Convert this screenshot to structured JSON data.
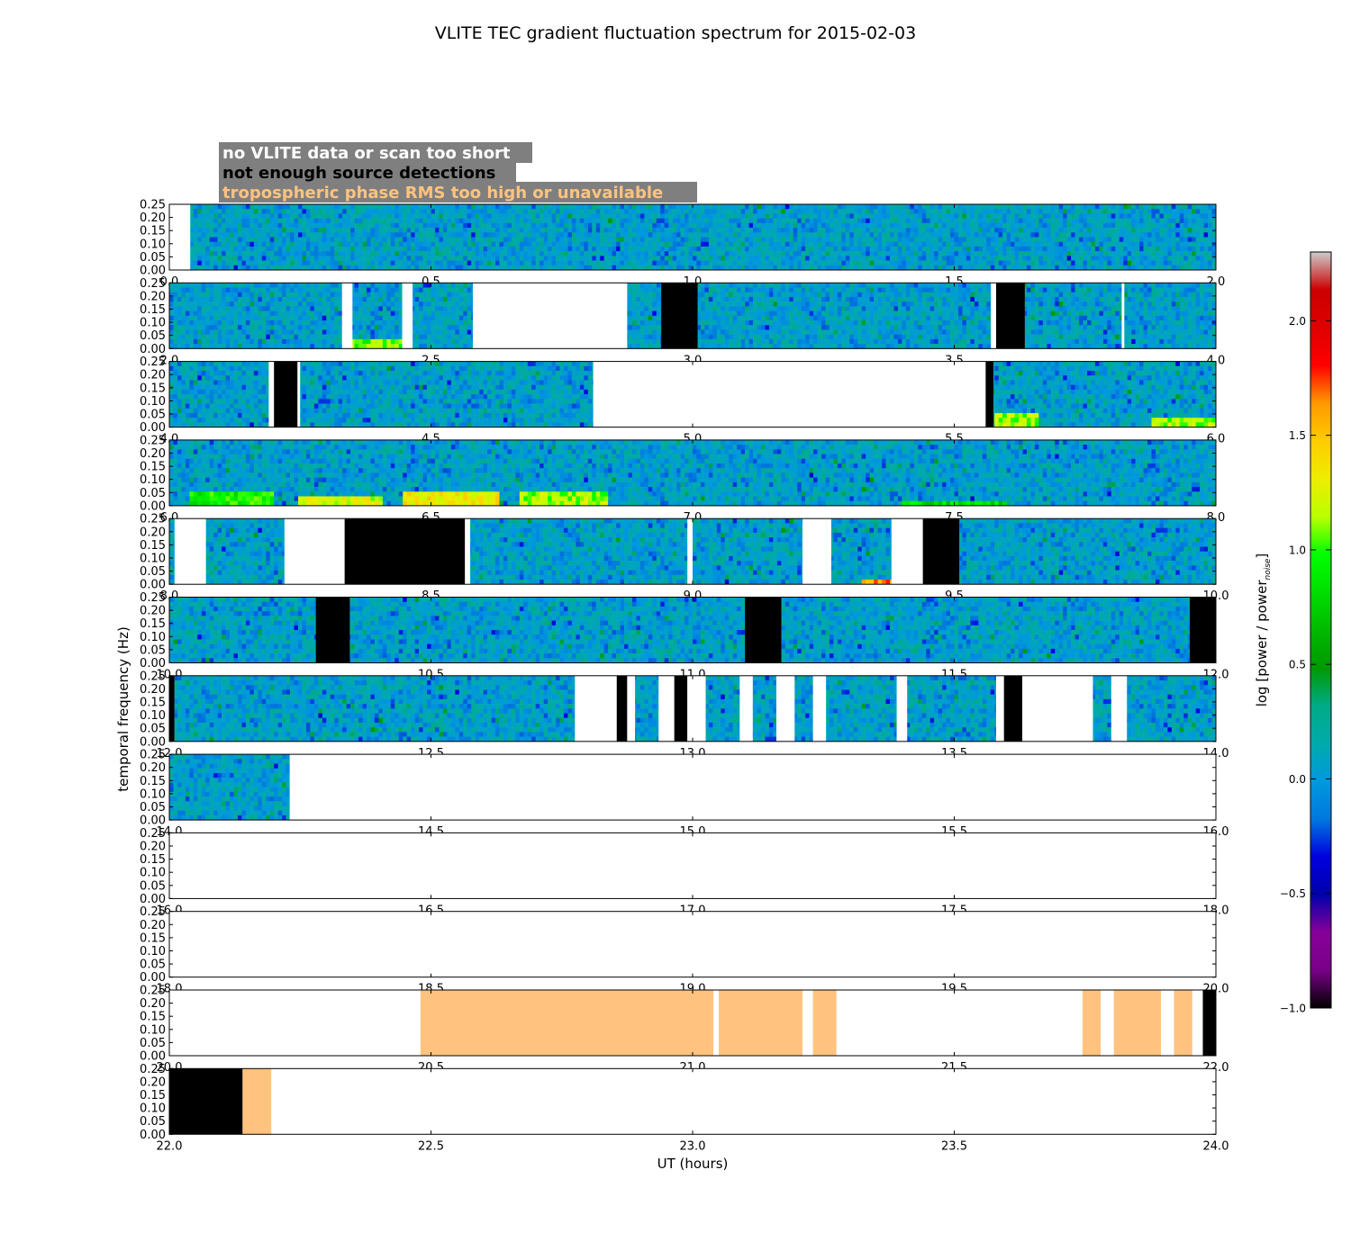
{
  "chart_data": {
    "type": "heatmap",
    "title": "VLITE TEC gradient fluctuation spectrum for 2015-02-03",
    "xlabel": "UT (hours)",
    "ylabel": "temporal frequency (Hz)",
    "ylim": [
      0,
      0.25
    ],
    "yticks": [
      "0.00",
      "0.05",
      "0.10",
      "0.15",
      "0.20",
      "0.25"
    ],
    "panel_hours": 2,
    "legend": {
      "placement": "top-left",
      "entries": [
        {
          "label": "no VLITE data or scan too short",
          "text_color": "#ffffff",
          "box_color": "#7f7f7f",
          "fill": "#ffffff"
        },
        {
          "label": "not enough source detections",
          "text_color": "#000000",
          "box_color": "#7f7f7f",
          "fill": "#000000"
        },
        {
          "label": "tropospheric phase RMS too high or unavailable",
          "text_color": "#ffc37f",
          "box_color": "#7f7f7f",
          "fill": "#ffc37f"
        }
      ]
    },
    "colorbar": {
      "label": "log [power / power",
      "label_sub": "noise",
      "label_end": "]",
      "range": [
        -1.0,
        2.3
      ],
      "ticks": [
        "−1.0",
        "−0.5",
        "0.0",
        "0.5",
        "1.0",
        "1.5",
        "2.0"
      ],
      "tick_values": [
        -1.0,
        -0.5,
        0.0,
        0.5,
        1.0,
        1.5,
        2.0
      ],
      "colormap": "nipy_spectral"
    },
    "panels": [
      {
        "start": 0,
        "xticks": [
          "0.0",
          "0.5",
          "1.0",
          "1.5",
          "2.0"
        ],
        "segments": [
          [
            0.0,
            0.04,
            "nodata"
          ],
          [
            0.04,
            2.0,
            "data"
          ]
        ]
      },
      {
        "start": 2,
        "xticks": [
          "2.0",
          "2.5",
          "3.0",
          "3.5",
          "4.0"
        ],
        "segments": [
          [
            2.0,
            2.33,
            "data"
          ],
          [
            2.33,
            2.35,
            "nodata"
          ],
          [
            2.35,
            2.445,
            "data",
            [
              [
                2.35,
                2.445,
                0,
                0.03,
                1.2
              ]
            ]
          ],
          [
            2.445,
            2.465,
            "nodata"
          ],
          [
            2.465,
            2.58,
            "data"
          ],
          [
            2.58,
            2.875,
            "nodata"
          ],
          [
            2.875,
            2.94,
            "data"
          ],
          [
            2.94,
            3.01,
            "nodet"
          ],
          [
            3.01,
            3.57,
            "data"
          ],
          [
            3.57,
            3.58,
            "nodata"
          ],
          [
            3.58,
            3.635,
            "nodet"
          ],
          [
            3.635,
            3.82,
            "data"
          ],
          [
            3.82,
            3.825,
            "nodata"
          ],
          [
            3.825,
            4.0,
            "data"
          ]
        ]
      },
      {
        "start": 4,
        "xticks": [
          "4.0",
          "4.5",
          "5.0",
          "5.5",
          "6.0"
        ],
        "segments": [
          [
            4.0,
            4.19,
            "data"
          ],
          [
            4.19,
            4.2,
            "nodata"
          ],
          [
            4.2,
            4.245,
            "nodet"
          ],
          [
            4.245,
            4.25,
            "nodata"
          ],
          [
            4.25,
            4.81,
            "data"
          ],
          [
            4.81,
            5.56,
            "nodata"
          ],
          [
            5.56,
            5.575,
            "nodet"
          ],
          [
            5.575,
            6.0,
            "data",
            [
              [
                5.58,
                5.66,
                0,
                0.05,
                1.3
              ],
              [
                5.88,
                6.0,
                0,
                0.03,
                1.3
              ]
            ]
          ]
        ]
      },
      {
        "start": 6,
        "xticks": [
          "6.0",
          "6.5",
          "7.0",
          "7.5",
          "8.0"
        ],
        "segments": [
          [
            6.0,
            8.0,
            "data",
            [
              [
                6.04,
                6.2,
                0,
                0.05,
                1.1
              ],
              [
                6.25,
                6.41,
                0,
                0.04,
                1.4
              ],
              [
                6.45,
                6.63,
                0,
                0.05,
                1.5
              ],
              [
                6.67,
                6.84,
                0,
                0.06,
                1.3
              ],
              [
                7.4,
                7.6,
                0,
                0.02,
                1.0
              ]
            ]
          ]
        ]
      },
      {
        "start": 8,
        "xticks": [
          "8.0",
          "8.5",
          "9.0",
          "9.5",
          "10.0"
        ],
        "segments": [
          [
            8.0,
            8.01,
            "data"
          ],
          [
            8.01,
            8.07,
            "nodata"
          ],
          [
            8.07,
            8.22,
            "data"
          ],
          [
            8.22,
            8.335,
            "nodata"
          ],
          [
            8.335,
            8.565,
            "nodet"
          ],
          [
            8.565,
            8.575,
            "nodata"
          ],
          [
            8.575,
            8.99,
            "data"
          ],
          [
            8.99,
            9.0,
            "nodata"
          ],
          [
            9.0,
            9.21,
            "data"
          ],
          [
            9.21,
            9.265,
            "nodata"
          ],
          [
            9.265,
            9.38,
            "data",
            [
              [
                9.32,
                9.38,
                0,
                0.02,
                1.8
              ]
            ]
          ],
          [
            9.38,
            9.44,
            "nodata"
          ],
          [
            9.44,
            9.51,
            "nodet"
          ],
          [
            9.51,
            10.0,
            "data"
          ]
        ]
      },
      {
        "start": 10,
        "xticks": [
          "10.0",
          "10.5",
          "11.0",
          "11.5",
          "12.0"
        ],
        "segments": [
          [
            10.0,
            10.28,
            "data"
          ],
          [
            10.28,
            10.345,
            "nodet"
          ],
          [
            10.345,
            11.1,
            "data"
          ],
          [
            11.1,
            11.17,
            "nodet"
          ],
          [
            11.17,
            11.95,
            "data"
          ],
          [
            11.95,
            12.0,
            "nodet"
          ]
        ]
      },
      {
        "start": 12,
        "xticks": [
          "12.0",
          "12.5",
          "13.0",
          "13.5",
          "14.0"
        ],
        "segments": [
          [
            12.0,
            12.01,
            "nodet"
          ],
          [
            12.01,
            12.775,
            "data"
          ],
          [
            12.775,
            12.855,
            "nodata"
          ],
          [
            12.855,
            12.875,
            "nodet"
          ],
          [
            12.875,
            12.89,
            "nodata"
          ],
          [
            12.89,
            12.935,
            "data"
          ],
          [
            12.935,
            12.965,
            "nodata"
          ],
          [
            12.965,
            12.99,
            "nodet"
          ],
          [
            12.99,
            13.025,
            "nodata"
          ],
          [
            13.025,
            13.09,
            "data"
          ],
          [
            13.09,
            13.115,
            "nodata"
          ],
          [
            13.115,
            13.16,
            "data"
          ],
          [
            13.16,
            13.195,
            "nodata"
          ],
          [
            13.195,
            13.23,
            "data"
          ],
          [
            13.23,
            13.255,
            "nodata"
          ],
          [
            13.255,
            13.39,
            "data"
          ],
          [
            13.39,
            13.41,
            "nodata"
          ],
          [
            13.41,
            13.58,
            "data"
          ],
          [
            13.58,
            13.595,
            "nodata"
          ],
          [
            13.595,
            13.63,
            "nodet"
          ],
          [
            13.63,
            13.765,
            "nodata"
          ],
          [
            13.765,
            13.8,
            "data"
          ],
          [
            13.8,
            13.83,
            "nodata"
          ],
          [
            13.83,
            14.0,
            "data"
          ]
        ]
      },
      {
        "start": 14,
        "xticks": [
          "14.0",
          "14.5",
          "15.0",
          "15.5",
          "16.0"
        ],
        "segments": [
          [
            14.0,
            14.23,
            "data"
          ],
          [
            14.23,
            16.0,
            "nodata"
          ]
        ]
      },
      {
        "start": 16,
        "xticks": [
          "16.0",
          "16.5",
          "17.0",
          "17.5",
          "18.0"
        ],
        "segments": [
          [
            16.0,
            18.0,
            "nodata"
          ]
        ]
      },
      {
        "start": 18,
        "xticks": [
          "18.0",
          "18.5",
          "19.0",
          "19.5",
          "20.0"
        ],
        "segments": [
          [
            18.0,
            20.0,
            "nodata"
          ]
        ]
      },
      {
        "start": 20,
        "xticks": [
          "20.0",
          "20.5",
          "21.0",
          "21.5",
          "22.0"
        ],
        "segments": [
          [
            20.0,
            20.48,
            "nodata"
          ],
          [
            20.48,
            21.04,
            "tropo"
          ],
          [
            21.04,
            21.05,
            "nodata"
          ],
          [
            21.05,
            21.21,
            "tropo"
          ],
          [
            21.21,
            21.23,
            "nodata"
          ],
          [
            21.23,
            21.275,
            "tropo"
          ],
          [
            21.275,
            21.745,
            "nodata"
          ],
          [
            21.745,
            21.78,
            "tropo"
          ],
          [
            21.78,
            21.805,
            "nodata"
          ],
          [
            21.805,
            21.895,
            "tropo"
          ],
          [
            21.895,
            21.92,
            "nodata"
          ],
          [
            21.92,
            21.955,
            "tropo"
          ],
          [
            21.955,
            21.975,
            "nodata"
          ],
          [
            21.975,
            22.0,
            "nodet"
          ]
        ]
      },
      {
        "start": 22,
        "xticks": [
          "22.0",
          "22.5",
          "23.0",
          "23.5",
          "24.0"
        ],
        "segments": [
          [
            22.0,
            22.14,
            "nodet"
          ],
          [
            22.14,
            22.195,
            "tropo"
          ],
          [
            22.195,
            24.0,
            "nodata"
          ]
        ]
      }
    ]
  }
}
